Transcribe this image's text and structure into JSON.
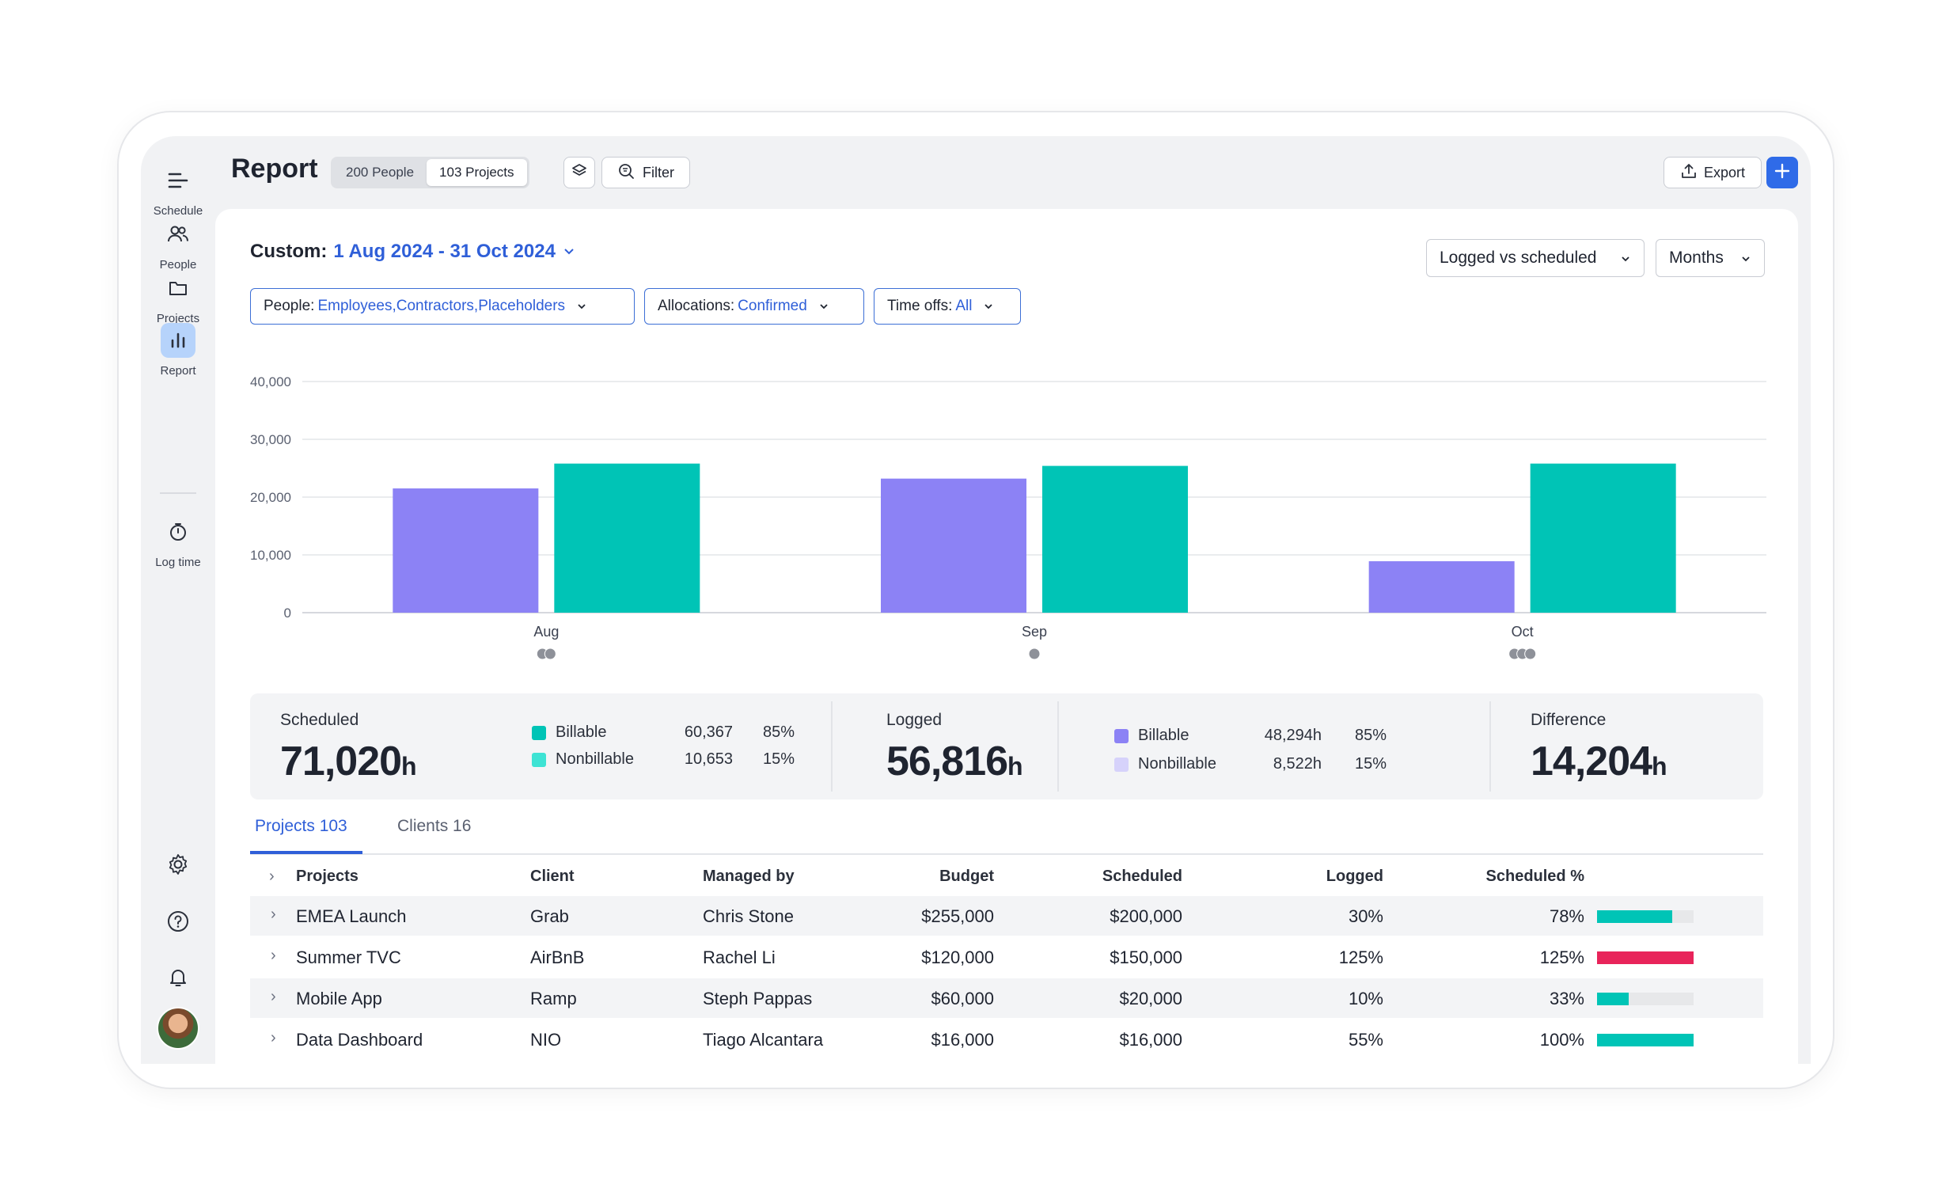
{
  "sidebar": {
    "items": [
      {
        "label": "Schedule",
        "icon": "menu-lines-icon"
      },
      {
        "label": "People",
        "icon": "people-icon"
      },
      {
        "label": "Projects",
        "icon": "folder-icon"
      },
      {
        "label": "Report",
        "icon": "bar-chart-icon",
        "active": true
      },
      {
        "label": "Log time",
        "icon": "stopwatch-icon"
      }
    ],
    "bottom_icons": [
      "gear-icon",
      "help-icon",
      "bell-icon",
      "avatar"
    ]
  },
  "header": {
    "title": "Report",
    "seg_people": "200 People",
    "seg_projects": "103 Projects",
    "filter_label": "Filter",
    "export_label": "Export"
  },
  "panel": {
    "range_prefix": "Custom:",
    "range_value": "1 Aug 2024 - 31 Oct 2024",
    "view_select": "Logged vs scheduled",
    "period_select": "Months",
    "chips": [
      {
        "label": "People:",
        "value": "Employees,Contractors,Placeholders"
      },
      {
        "label": "Allocations:",
        "value": "Confirmed"
      },
      {
        "label": "Time offs:",
        "value": "All"
      }
    ]
  },
  "chart_data": {
    "type": "bar",
    "categories": [
      "Aug",
      "Sep",
      "Oct"
    ],
    "series": [
      {
        "values": [
          21500,
          23200,
          8900
        ],
        "color": "#8c82f5"
      },
      {
        "values": [
          25800,
          25400,
          25800
        ],
        "color": "#00c4b6"
      }
    ],
    "ylim": [
      0,
      40000
    ],
    "yticks": [
      "0",
      "10,000",
      "20,000",
      "30,000",
      "40,000"
    ],
    "ytick_values": [
      0,
      10000,
      20000,
      30000,
      40000
    ],
    "marker_dots": [
      2,
      1,
      3
    ],
    "grid": true
  },
  "summary": {
    "scheduled_label": "Scheduled",
    "scheduled_value": "71,020",
    "unit": "h",
    "sched_billable_label": "Billable",
    "sched_billable_value": "60,367",
    "sched_billable_pct": "85%",
    "sched_nonbillable_label": "Nonbillable",
    "sched_nonbillable_value": "10,653",
    "sched_nonbillable_pct": "15%",
    "logged_label": "Logged",
    "logged_value": "56,816",
    "log_billable_label": "Billable",
    "log_billable_value": "48,294h",
    "log_billable_pct": "85%",
    "log_nonbillable_label": "Nonbillable",
    "log_nonbillable_value": "8,522h",
    "log_nonbillable_pct": "15%",
    "difference_label": "Difference",
    "difference_value": "14,204"
  },
  "tabs": [
    {
      "label": "Projects",
      "count": "103",
      "active": true
    },
    {
      "label": "Clients",
      "count": "16"
    }
  ],
  "table": {
    "headers": [
      "Projects",
      "Client",
      "Managed by",
      "Budget",
      "Scheduled",
      "Logged",
      "Scheduled %"
    ],
    "rows": [
      {
        "project": "EMEA Launch",
        "client": "Grab",
        "manager": "Chris Stone",
        "budget": "$255,000",
        "scheduled": "$200,000",
        "logged": "30%",
        "sched_pct": "78%",
        "progress": 0.78,
        "color": "#00c4b6"
      },
      {
        "project": "Summer TVC",
        "client": "AirBnB",
        "manager": "Rachel Li",
        "budget": "$120,000",
        "scheduled": "$150,000",
        "logged": "125%",
        "sched_pct": "125%",
        "progress": 1.0,
        "color": "#e8245a"
      },
      {
        "project": "Mobile App",
        "client": "Ramp",
        "manager": "Steph Pappas",
        "budget": "$60,000",
        "scheduled": "$20,000",
        "logged": "10%",
        "sched_pct": "33%",
        "progress": 0.33,
        "color": "#00c4b6"
      },
      {
        "project": "Data Dashboard",
        "client": "NIO",
        "manager": "Tiago Alcantara",
        "budget": "$16,000",
        "scheduled": "$16,000",
        "logged": "55%",
        "sched_pct": "100%",
        "progress": 1.0,
        "color": "#00c4b6"
      }
    ]
  }
}
